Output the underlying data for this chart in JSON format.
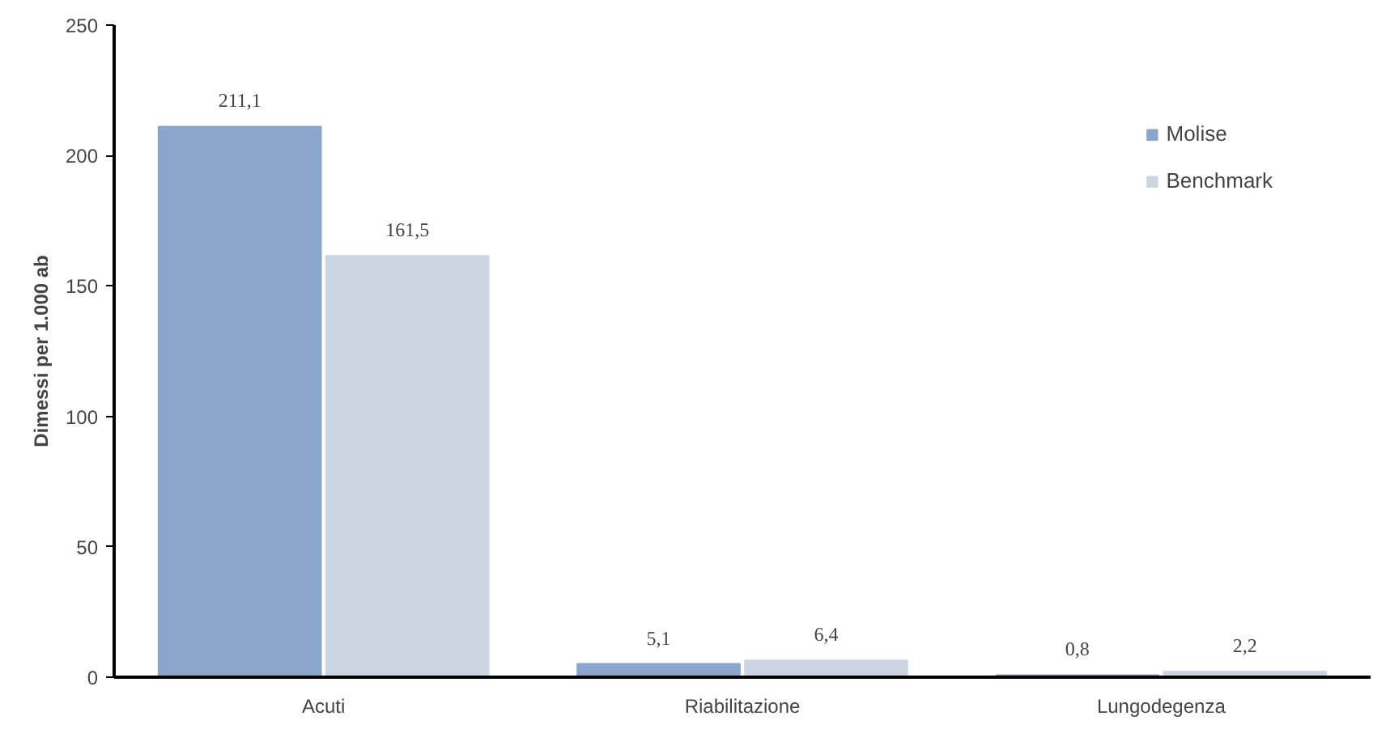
{
  "chart_data": {
    "type": "bar",
    "ylabel": "Dimessi per 1.000 ab",
    "categories": [
      "Acuti",
      "Riabilitazione",
      "Lungodegenza"
    ],
    "series": [
      {
        "name": "Molise",
        "color": "#8ba6cc",
        "values": [
          211.1,
          5.1,
          0.8
        ],
        "value_labels": [
          "211,1",
          "5,1",
          "0,8"
        ]
      },
      {
        "name": "Benchmark",
        "color": "#ccd6e3",
        "values": [
          161.5,
          6.4,
          2.2
        ],
        "value_labels": [
          "161,5",
          "6,4",
          "2,2"
        ]
      }
    ],
    "ylim": [
      0,
      250
    ],
    "yticks": [
      0,
      50,
      100,
      150,
      200,
      250
    ],
    "grid": false,
    "legend": "top right"
  }
}
